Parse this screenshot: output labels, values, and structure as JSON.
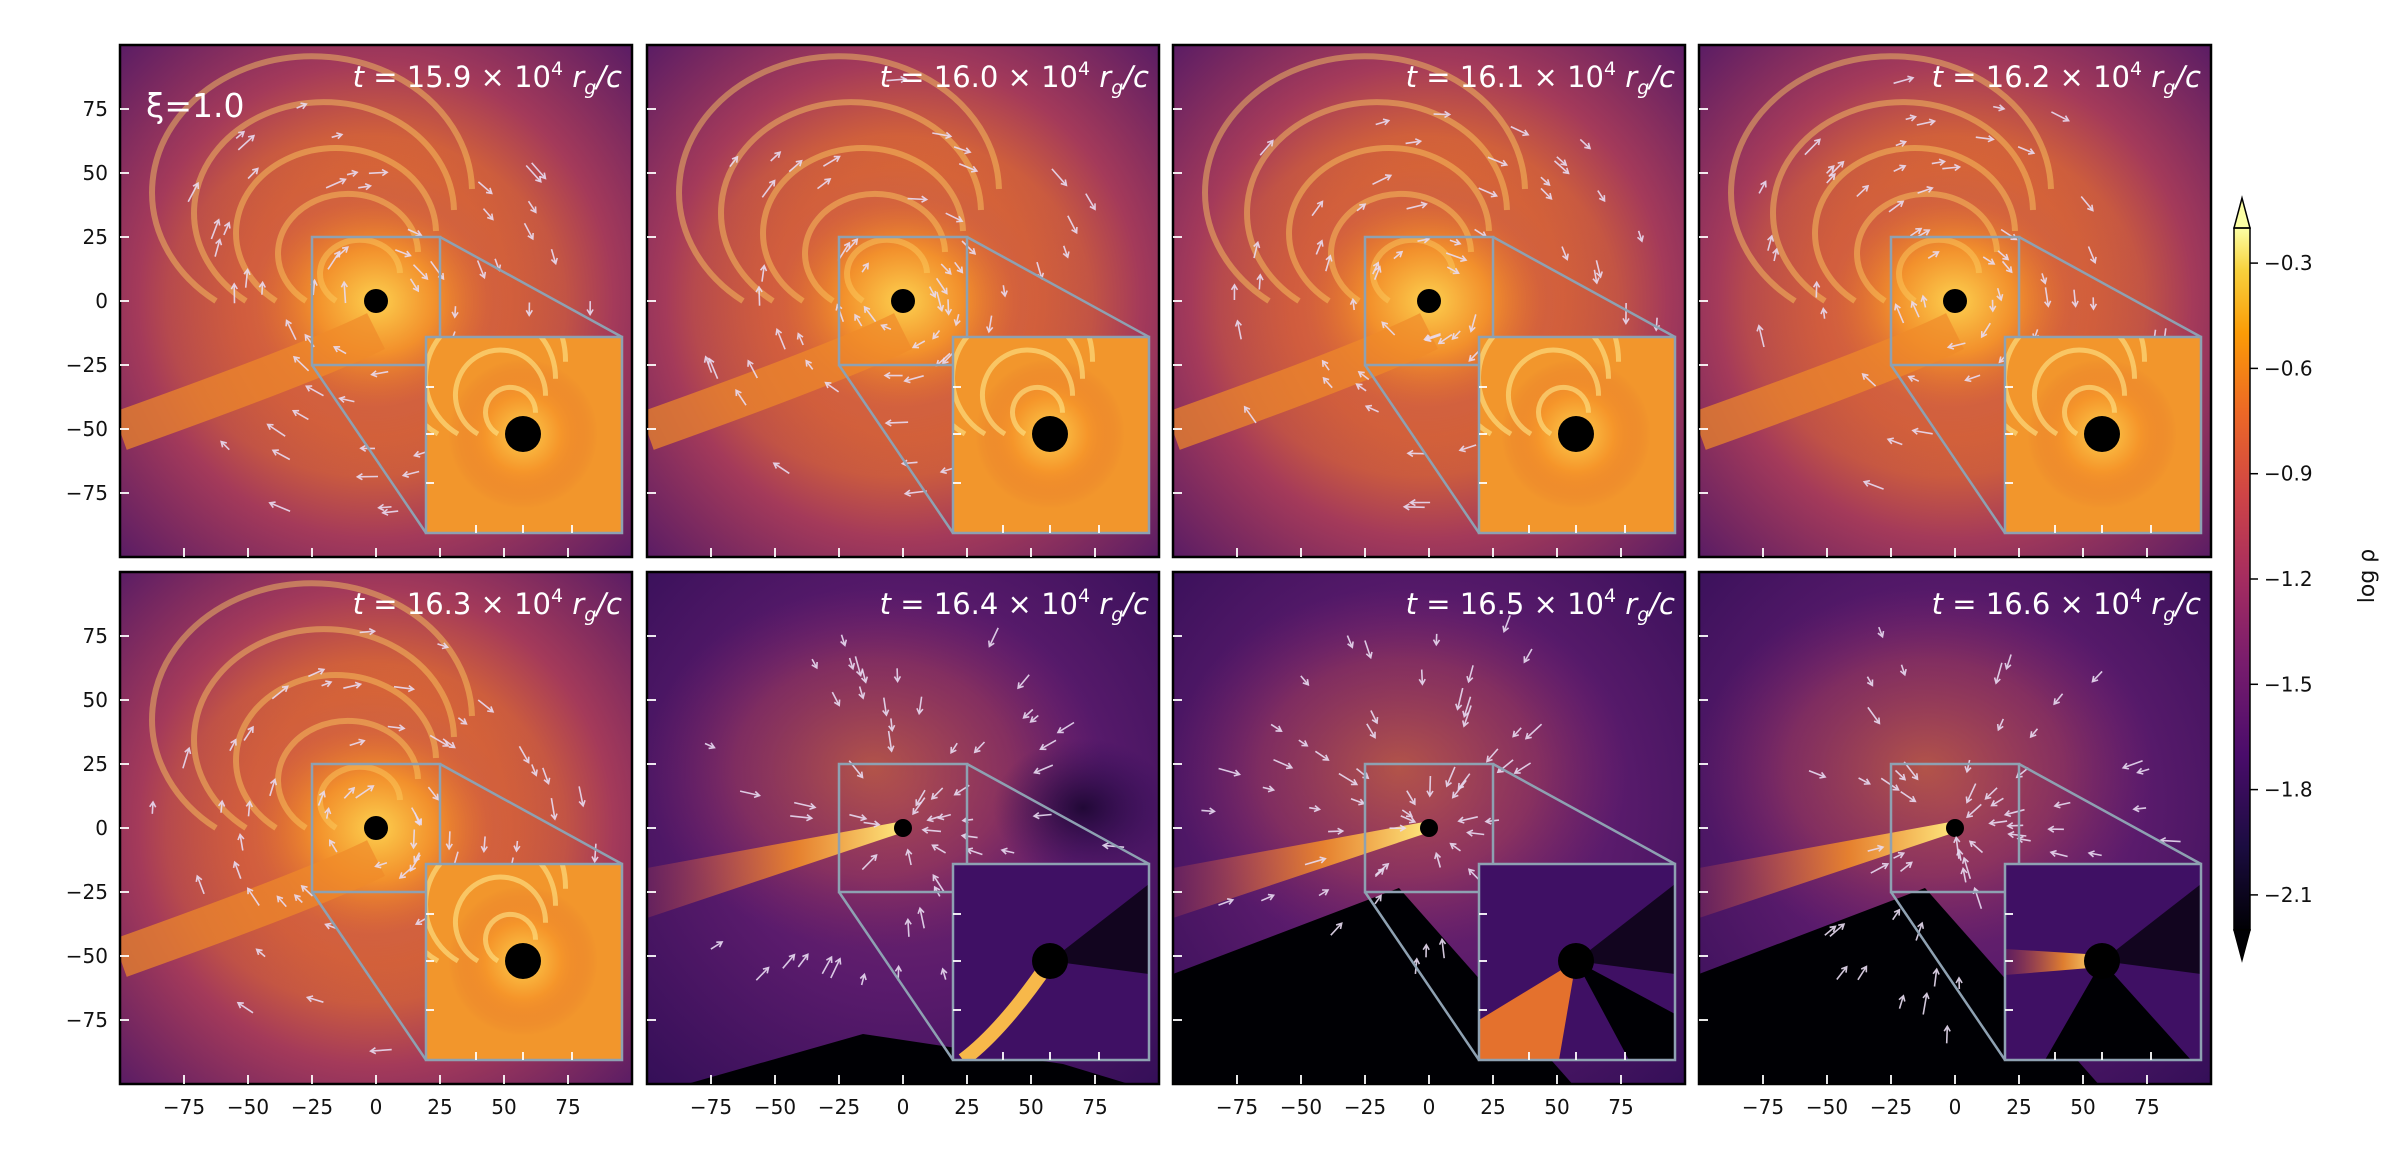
{
  "chart_data": {
    "type": "heatmap",
    "layout": "2x4 grid of panels with zoom insets",
    "annotation": "ξ=1.0",
    "panels": [
      {
        "t": "15.9",
        "inset_style": "disk"
      },
      {
        "t": "16.0",
        "inset_style": "disk"
      },
      {
        "t": "16.1",
        "inset_style": "disk"
      },
      {
        "t": "16.2",
        "inset_style": "disk"
      },
      {
        "t": "16.3",
        "inset_style": "disk"
      },
      {
        "t": "16.4",
        "inset_style": "stream"
      },
      {
        "t": "16.5",
        "inset_style": "fan"
      },
      {
        "t": "16.6",
        "inset_style": "stream"
      }
    ],
    "time_label_prefix": "t = ",
    "time_label_mid": " × 10",
    "time_label_exp": "4",
    "time_label_unit": "r",
    "time_label_unit_sub": "g",
    "time_label_unit_tail": "/c",
    "xlim": [
      -100,
      100
    ],
    "ylim": [
      -100,
      100
    ],
    "x_ticks": [
      -75,
      -50,
      -25,
      0,
      25,
      50,
      75
    ],
    "y_ticks": [
      75,
      50,
      25,
      0,
      -25,
      -50,
      -75
    ],
    "x_tick_labels": [
      "−75",
      "−50",
      "−25",
      "0",
      "25",
      "50",
      "75"
    ],
    "y_tick_labels": [
      "75",
      "50",
      "25",
      "0",
      "−25",
      "−50",
      "−75"
    ],
    "zoom_box": {
      "x": [
        -25,
        25
      ],
      "y": [
        -25,
        25
      ]
    },
    "colorbar": {
      "label": "log ρ",
      "range": [
        -2.2,
        -0.2
      ],
      "ticks": [
        -0.3,
        -0.6,
        -0.9,
        -1.2,
        -1.5,
        -1.8,
        -2.1
      ],
      "tick_labels": [
        "−0.3",
        "−0.6",
        "−0.9",
        "−1.2",
        "−1.5",
        "−1.8",
        "−2.1"
      ],
      "colormap": "inferno"
    },
    "colors": {
      "inset_frame": "#8ea1b2",
      "arrow": "#e8dcf2",
      "black_hole": "#000000",
      "text_on_map": "#ffffff"
    }
  }
}
